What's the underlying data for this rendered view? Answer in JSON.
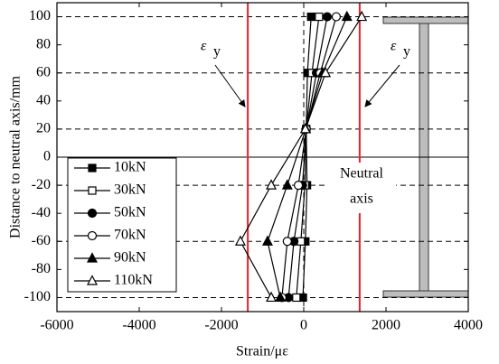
{
  "chart_data": {
    "type": "line",
    "xlabel": "Strain/με",
    "ylabel": "Distance to neutral axis/mm",
    "xlim": [
      -6000,
      4000
    ],
    "xticks": [
      -6000,
      -4000,
      -2000,
      0,
      2000,
      4000
    ],
    "ylim": [
      -110,
      110
    ],
    "yticks": [
      -100,
      -80,
      -60,
      -40,
      -20,
      0,
      20,
      40,
      60,
      80,
      100
    ],
    "yield_strain": [
      -1360,
      1360
    ],
    "yield_color": "#e8212b",
    "yield_label_symbol": "ε",
    "yield_label_subscript": "y",
    "annotation": [
      "Neutral",
      "axis"
    ],
    "legend": "upper left",
    "series": [
      {
        "name": "10kN",
        "color": "#000000",
        "marker": "square",
        "filled": true,
        "x": [
          -20,
          40,
          80,
          60,
          90,
          180
        ],
        "values": [
          -100,
          -60,
          -20,
          20,
          60,
          100
        ]
      },
      {
        "name": "30kN",
        "color": "#000000",
        "marker": "square",
        "filled": false,
        "x": [
          -180,
          -70,
          30,
          60,
          200,
          370
        ],
        "values": [
          -100,
          -60,
          -20,
          20,
          60,
          100
        ]
      },
      {
        "name": "50kN",
        "color": "#000000",
        "marker": "circle",
        "filled": true,
        "x": [
          -370,
          -240,
          -30,
          60,
          310,
          570
        ],
        "values": [
          -100,
          -60,
          -20,
          20,
          60,
          100
        ]
      },
      {
        "name": "70kN",
        "color": "#000000",
        "marker": "circle",
        "filled": false,
        "x": [
          -530,
          -400,
          -130,
          60,
          400,
          790
        ],
        "values": [
          -100,
          -60,
          -20,
          20,
          60,
          100
        ]
      },
      {
        "name": "90kN",
        "color": "#000000",
        "marker": "triangle",
        "filled": true,
        "x": [
          -570,
          -880,
          -400,
          50,
          460,
          1050
        ],
        "values": [
          -100,
          -60,
          -20,
          20,
          60,
          100
        ]
      },
      {
        "name": "110kN",
        "color": "#000000",
        "marker": "triangle",
        "filled": false,
        "x": [
          -790,
          -1540,
          -790,
          40,
          530,
          1410
        ],
        "values": [
          -100,
          -60,
          -20,
          20,
          60,
          100
        ]
      }
    ]
  }
}
